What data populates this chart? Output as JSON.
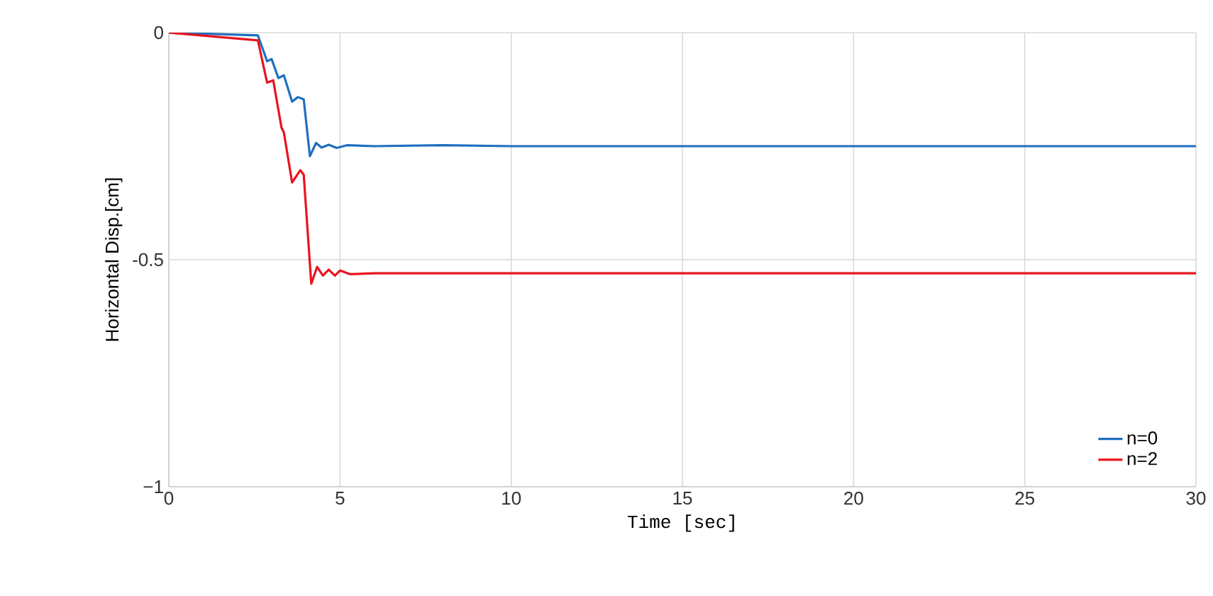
{
  "chart_data": {
    "type": "line",
    "xlabel": "Time [sec]",
    "ylabel": "Horizontal Disp.[cm]",
    "xlim": [
      0,
      30
    ],
    "ylim": [
      -1,
      0
    ],
    "xticks": [
      0,
      5,
      10,
      15,
      20,
      25,
      30
    ],
    "yticks": [
      {
        "value": -1,
        "label": "−1"
      },
      {
        "value": -0.5,
        "label": "-0.5"
      },
      0
    ],
    "grid": true,
    "legend": "bottom right",
    "series": [
      {
        "name": "n=0",
        "color": "#1f6fbf",
        "x": [
          0,
          2.6,
          2.87,
          3.0,
          3.2,
          3.36,
          3.6,
          3.77,
          3.94,
          4.12,
          4.3,
          4.46,
          4.67,
          4.9,
          5.2,
          6,
          8,
          10,
          15,
          20,
          25,
          30
        ],
        "values": [
          0,
          -0.006,
          -0.063,
          -0.058,
          -0.1,
          -0.094,
          -0.152,
          -0.142,
          -0.147,
          -0.272,
          -0.243,
          -0.253,
          -0.247,
          -0.254,
          -0.248,
          -0.25,
          -0.248,
          -0.25,
          -0.25,
          -0.25,
          -0.25,
          -0.25
        ]
      },
      {
        "name": "n=2",
        "color": "#e8141e",
        "x": [
          0,
          2.6,
          2.87,
          3.05,
          3.29,
          3.36,
          3.6,
          3.84,
          3.94,
          4.16,
          4.33,
          4.5,
          4.67,
          4.85,
          5.0,
          5.3,
          6,
          8,
          10,
          15,
          20,
          25,
          30
        ],
        "values": [
          0,
          -0.017,
          -0.11,
          -0.105,
          -0.209,
          -0.22,
          -0.33,
          -0.303,
          -0.313,
          -0.553,
          -0.516,
          -0.535,
          -0.522,
          -0.535,
          -0.524,
          -0.532,
          -0.53,
          -0.53,
          -0.53,
          -0.53,
          -0.53,
          -0.53,
          -0.53
        ]
      }
    ]
  }
}
